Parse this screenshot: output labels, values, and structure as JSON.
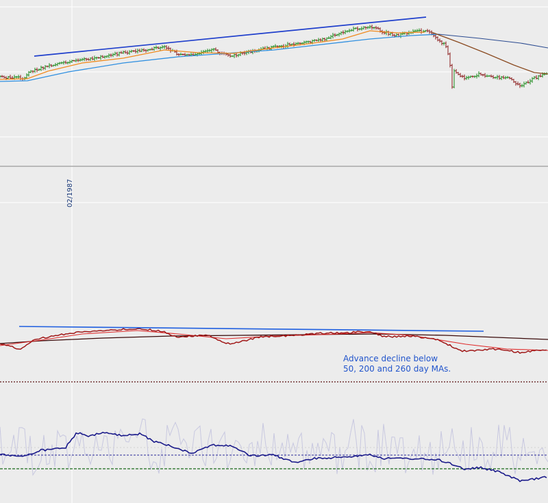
{
  "chart_data": [
    {
      "type": "ohlc",
      "panel": "price",
      "series": [
        {
          "values": "random-walk path with rising channel then sharp crash",
          "color": "#1a8a1a"
        },
        {
          "values": "short moving average",
          "color": "#f08a1e"
        },
        {
          "values": "long moving average",
          "color": "#2f8fe0"
        },
        {
          "values": "post-crash moving average",
          "color": "#8a4a20"
        },
        {
          "values": "trend line",
          "color": "#1f3fcc"
        }
      ],
      "x_tick_labels": [
        "02/1987"
      ],
      "grid": true
    },
    {
      "type": "line",
      "panel": "advance-decline",
      "series": [
        {
          "values": "A/D line",
          "color": "#a01818"
        },
        {
          "values": "50 day MA",
          "color": "#e02a2a"
        },
        {
          "values": "200 / 260 day MA",
          "color": "#3a0a0a"
        },
        {
          "values": "trend line",
          "color": "#1f5fe0"
        }
      ],
      "annotation": [
        "Advance decline below",
        "50, 200 and 260 day MAs."
      ]
    },
    {
      "type": "line",
      "panel": "oscillator",
      "series": [
        {
          "values": "raw oscillator",
          "color": "#c8c8e0"
        },
        {
          "values": "smoothed oscillator",
          "color": "#1a1a8a"
        }
      ],
      "reference_lines": [
        "dotted blue",
        "dashed green"
      ]
    }
  ],
  "colors": {
    "background": "#ececec",
    "grid": "#ffffff",
    "separator": "#a8a8a8",
    "up_bar": "#1a8a1a",
    "down_bar": "#8a1a1a",
    "annotation": "#2255cc"
  }
}
